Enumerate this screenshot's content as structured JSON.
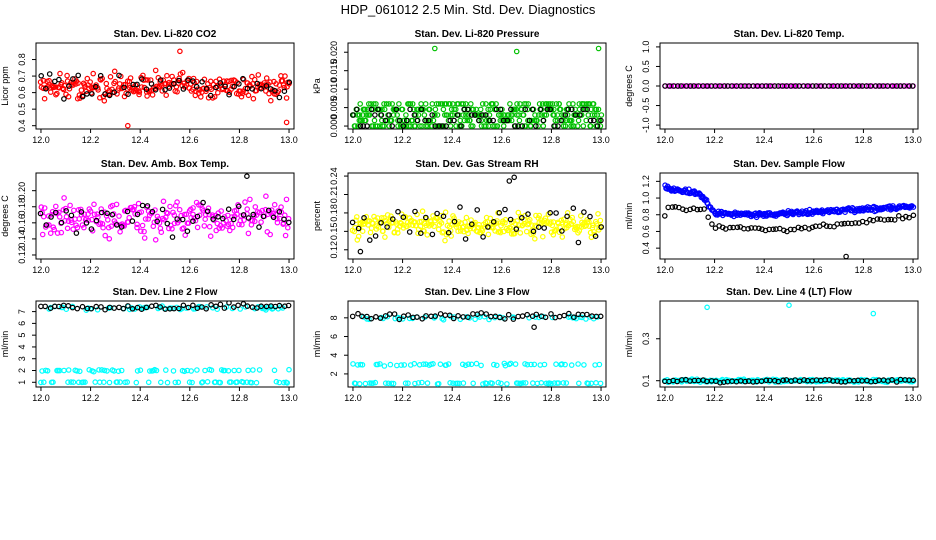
{
  "page_title": "HDP_061012  2.5 Min. Std. Dev. Diagnostics",
  "chart_data": [
    {
      "type": "scatter",
      "title": "Stan. Dev. Li-820 CO2",
      "ylabel": "Licor ppm",
      "xlim": [
        11.98,
        13.02
      ],
      "ylim": [
        0.38,
        0.9
      ],
      "xticks": [
        12.0,
        12.2,
        12.4,
        12.6,
        12.8,
        13.0
      ],
      "xtick_labels": [
        "12.0",
        "12.2",
        "12.4",
        "12.6",
        "12.8",
        "13.0"
      ],
      "yticks": [
        0.4,
        0.5,
        0.6,
        0.7,
        0.8
      ],
      "ytick_labels": [
        "0.4",
        "0.5",
        "0.6",
        "0.7",
        "0.8"
      ],
      "series": [
        {
          "name": "red",
          "color": "#ff0000",
          "mean": 0.64,
          "spread": 0.07,
          "n": 260,
          "outliers": [
            [
              12.35,
              0.4
            ],
            [
              12.56,
              0.85
            ],
            [
              12.99,
              0.42
            ]
          ]
        },
        {
          "name": "black",
          "color": "#000000",
          "mean": 0.63,
          "spread": 0.06,
          "n": 55
        }
      ]
    },
    {
      "type": "scatter",
      "title": "Stan. Dev. Li-820 Pressure",
      "ylabel": "kPa",
      "xlim": [
        11.98,
        13.02
      ],
      "ylim": [
        -0.0008,
        0.0225
      ],
      "xticks": [
        12.0,
        12.2,
        12.4,
        12.6,
        12.8,
        13.0
      ],
      "xtick_labels": [
        "12.0",
        "12.2",
        "12.4",
        "12.6",
        "12.8",
        "13.0"
      ],
      "yticks": [
        0.0,
        0.005,
        0.01,
        0.015,
        0.02
      ],
      "ytick_labels": [
        "0.000",
        "0.005",
        "0.010",
        "0.015",
        "0.020"
      ],
      "series": [
        {
          "name": "green",
          "color": "#00c000",
          "levels": [
            0.0,
            0.0015,
            0.003,
            0.0045,
            0.006
          ],
          "n": 340,
          "outliers": [
            [
              12.33,
              0.021
            ],
            [
              12.66,
              0.0202
            ],
            [
              12.99,
              0.021
            ]
          ]
        },
        {
          "name": "black",
          "color": "#000000",
          "levels": [
            0.0,
            0.0015,
            0.003,
            0.0045
          ],
          "n": 70
        }
      ]
    },
    {
      "type": "scatter",
      "title": "Stan. Dev. Li-820 Temp.",
      "ylabel": "degrees C",
      "xlim": [
        11.98,
        13.02
      ],
      "ylim": [
        -1.1,
        1.1
      ],
      "xticks": [
        12.0,
        12.2,
        12.4,
        12.6,
        12.8,
        13.0
      ],
      "xtick_labels": [
        "12.0",
        "12.2",
        "12.4",
        "12.6",
        "12.8",
        "13.0"
      ],
      "yticks": [
        -1.0,
        -0.5,
        0.0,
        0.5,
        1.0
      ],
      "ytick_labels": [
        "-1.0",
        "-0.5",
        "0.0",
        "0.5",
        "1.0"
      ],
      "series": [
        {
          "name": "magenta",
          "color": "#ff00ff",
          "constant": 0.0,
          "n": 80
        },
        {
          "name": "black",
          "color": "#000000",
          "constant": 0.0,
          "n": 60
        }
      ]
    },
    {
      "type": "scatter",
      "title": "Stan. Dev. Amb. Box Temp.",
      "ylabel": "degrees C",
      "xlim": [
        11.98,
        13.02
      ],
      "ylim": [
        0.115,
        0.222
      ],
      "xticks": [
        12.0,
        12.2,
        12.4,
        12.6,
        12.8,
        13.0
      ],
      "xtick_labels": [
        "12.0",
        "12.2",
        "12.4",
        "12.6",
        "12.8",
        "13.0"
      ],
      "yticks": [
        0.12,
        0.14,
        0.16,
        0.18,
        0.2
      ],
      "ytick_labels": [
        "0.12",
        "0.14",
        "0.16",
        "0.18",
        "0.20"
      ],
      "series": [
        {
          "name": "magenta",
          "color": "#ff00ff",
          "mean": 0.165,
          "spread": 0.02,
          "n": 240
        },
        {
          "name": "black",
          "color": "#000000",
          "mean": 0.165,
          "spread": 0.02,
          "n": 50,
          "outliers": [
            [
              12.83,
              0.218
            ]
          ]
        }
      ]
    },
    {
      "type": "scatter",
      "title": "Stan. Dev. Gas Stream RH",
      "ylabel": "percent",
      "xlim": [
        11.98,
        13.02
      ],
      "ylim": [
        0.105,
        0.245
      ],
      "xticks": [
        12.0,
        12.2,
        12.4,
        12.6,
        12.8,
        13.0
      ],
      "xtick_labels": [
        "12.0",
        "12.2",
        "12.4",
        "12.6",
        "12.8",
        "13.0"
      ],
      "yticks": [
        0.12,
        0.15,
        0.18,
        0.21,
        0.24
      ],
      "ytick_labels": [
        "0.12",
        "0.15",
        "0.18",
        "0.21",
        "0.24"
      ],
      "series": [
        {
          "name": "yellow",
          "color": "#ffff00",
          "mean": 0.16,
          "spread": 0.018,
          "n": 280
        },
        {
          "name": "black",
          "color": "#000000",
          "mean": 0.165,
          "spread": 0.025,
          "n": 45,
          "outliers": [
            [
              12.63,
              0.232
            ],
            [
              12.65,
              0.238
            ],
            [
              12.03,
              0.117
            ]
          ]
        }
      ]
    },
    {
      "type": "scatter",
      "title": "Stan. Dev. Sample Flow",
      "ylabel": "ml/min",
      "xlim": [
        11.98,
        13.02
      ],
      "ylim": [
        0.27,
        1.3
      ],
      "xticks": [
        12.0,
        12.2,
        12.4,
        12.6,
        12.8,
        13.0
      ],
      "xtick_labels": [
        "12.0",
        "12.2",
        "12.4",
        "12.6",
        "12.8",
        "13.0"
      ],
      "yticks": [
        0.4,
        0.6,
        0.8,
        1.0,
        1.2
      ],
      "ytick_labels": [
        "0.4",
        "0.6",
        "0.8",
        "1.0",
        "1.2"
      ],
      "series": [
        {
          "name": "blue",
          "color": "#0000ff",
          "segments": [
            [
              12.0,
              1.12
            ],
            [
              12.14,
              1.05
            ],
            [
              12.2,
              0.82
            ],
            [
              12.4,
              0.8
            ],
            [
              12.7,
              0.85
            ],
            [
              13.0,
              0.9
            ]
          ],
          "spread": 0.04,
          "n": 300
        },
        {
          "name": "black",
          "color": "#000000",
          "segments": [
            [
              12.0,
              0.9
            ],
            [
              12.16,
              0.85
            ],
            [
              12.2,
              0.65
            ],
            [
              12.5,
              0.62
            ],
            [
              12.8,
              0.72
            ],
            [
              13.0,
              0.78
            ]
          ],
          "spread": 0.03,
          "n": 70,
          "outliers": [
            [
              12.73,
              0.3
            ]
          ]
        }
      ]
    },
    {
      "type": "scatter",
      "title": "Stan. Dev. Line 2 Flow",
      "ylabel": "ml/min",
      "xlim": [
        11.98,
        13.02
      ],
      "ylim": [
        0.6,
        7.9
      ],
      "xticks": [
        12.0,
        12.2,
        12.4,
        12.6,
        12.8,
        13.0
      ],
      "xtick_labels": [
        "12.0",
        "12.2",
        "12.4",
        "12.6",
        "12.8",
        "13.0"
      ],
      "yticks": [
        1,
        2,
        3,
        4,
        5,
        6,
        7
      ],
      "ytick_labels": [
        "1",
        "2",
        "3",
        "4",
        "5",
        "6",
        "7"
      ],
      "series": [
        {
          "name": "cyan",
          "color": "#00ffff",
          "bands": [
            1.0,
            2.0,
            7.3
          ],
          "band_spread": [
            0.08,
            0.12,
            0.25
          ],
          "n": 160
        },
        {
          "name": "black",
          "color": "#000000",
          "mean": 7.4,
          "spread": 0.25,
          "n": 55
        }
      ]
    },
    {
      "type": "scatter",
      "title": "Stan. Dev. Line 3 Flow",
      "ylabel": "ml/min",
      "xlim": [
        11.98,
        13.02
      ],
      "ylim": [
        0.6,
        9.8
      ],
      "xticks": [
        12.0,
        12.2,
        12.4,
        12.6,
        12.8,
        13.0
      ],
      "xtick_labels": [
        "12.0",
        "12.2",
        "12.4",
        "12.6",
        "12.8",
        "13.0"
      ],
      "yticks": [
        2,
        4,
        6,
        8
      ],
      "ytick_labels": [
        "2",
        "4",
        "6",
        "8"
      ],
      "series": [
        {
          "name": "cyan",
          "color": "#00ffff",
          "bands": [
            1.0,
            3.0,
            8.0
          ],
          "band_spread": [
            0.1,
            0.18,
            0.3
          ],
          "n": 160
        },
        {
          "name": "black",
          "color": "#000000",
          "mean": 8.2,
          "spread": 0.3,
          "n": 55,
          "outliers": [
            [
              12.73,
              7.0
            ]
          ]
        }
      ]
    },
    {
      "type": "scatter",
      "title": "Stan. Dev. Line 4 (LT) Flow",
      "ylabel": "ml/min",
      "xlim": [
        11.98,
        13.02
      ],
      "ylim": [
        0.07,
        0.48
      ],
      "xticks": [
        12.0,
        12.2,
        12.4,
        12.6,
        12.8,
        13.0
      ],
      "xtick_labels": [
        "12.0",
        "12.2",
        "12.4",
        "12.6",
        "12.8",
        "13.0"
      ],
      "yticks": [
        0.1,
        0.3
      ],
      "ytick_labels": [
        "0.1",
        "0.3"
      ],
      "series": [
        {
          "name": "cyan",
          "color": "#00ffff",
          "mean": 0.1,
          "spread": 0.006,
          "n": 220,
          "outliers": [
            [
              12.17,
              0.45
            ],
            [
              12.5,
              0.46
            ],
            [
              12.84,
              0.42
            ]
          ]
        },
        {
          "name": "black",
          "color": "#000000",
          "mean": 0.098,
          "spread": 0.006,
          "n": 60
        }
      ]
    }
  ]
}
